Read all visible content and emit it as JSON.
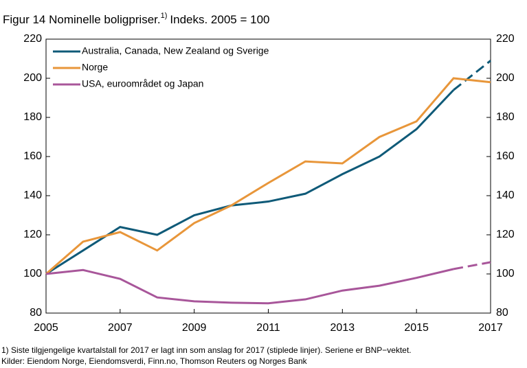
{
  "chart_data": {
    "type": "line",
    "title": "Figur 14 Nominelle boligpriser.",
    "title_note": "1)",
    "subtitle": "Indeks. 2005 = 100",
    "x": [
      2005,
      2006,
      2007,
      2008,
      2009,
      2010,
      2011,
      2012,
      2013,
      2014,
      2015,
      2016,
      2017
    ],
    "series": [
      {
        "name": "Australia, Canada, New Zealand og Sverige",
        "color": "#0f5a78",
        "dashed_from_x": 2016,
        "values": [
          100,
          112,
          124,
          120,
          130,
          135,
          137,
          141,
          151,
          160,
          174,
          194,
          209
        ]
      },
      {
        "name": "Norge",
        "color": "#e8963a",
        "values": [
          100,
          116.5,
          121.4,
          112,
          126,
          135,
          146.5,
          157.5,
          156.5,
          170,
          178,
          200,
          198
        ]
      },
      {
        "name": "USA, euroområdet og Japan",
        "color": "#a8569a",
        "dashed_from_x": 2016,
        "values": [
          100,
          102,
          97.5,
          88,
          86,
          85.3,
          85,
          87,
          91.5,
          94,
          98,
          102.5,
          106
        ]
      }
    ],
    "xlim": [
      2005,
      2017
    ],
    "xticks": [
      2005,
      2007,
      2009,
      2011,
      2013,
      2015,
      2017
    ],
    "ylim": [
      80,
      220
    ],
    "yticks": [
      80,
      100,
      120,
      140,
      160,
      180,
      200,
      220
    ],
    "y2lim": [
      80,
      220
    ],
    "y2ticks": [
      80,
      100,
      120,
      140,
      160,
      180,
      200,
      220
    ],
    "legend": "upper left",
    "footnotes": [
      "1) Siste tilgjengelige kvartalstall for 2017 er lagt inn som anslag for 2017 (stiplede linjer). Seriene er BNP−vektet.",
      "Kilder: Eiendom Norge, Eiendomsverdi, Finn.no, Thomson Reuters og Norges Bank"
    ]
  }
}
